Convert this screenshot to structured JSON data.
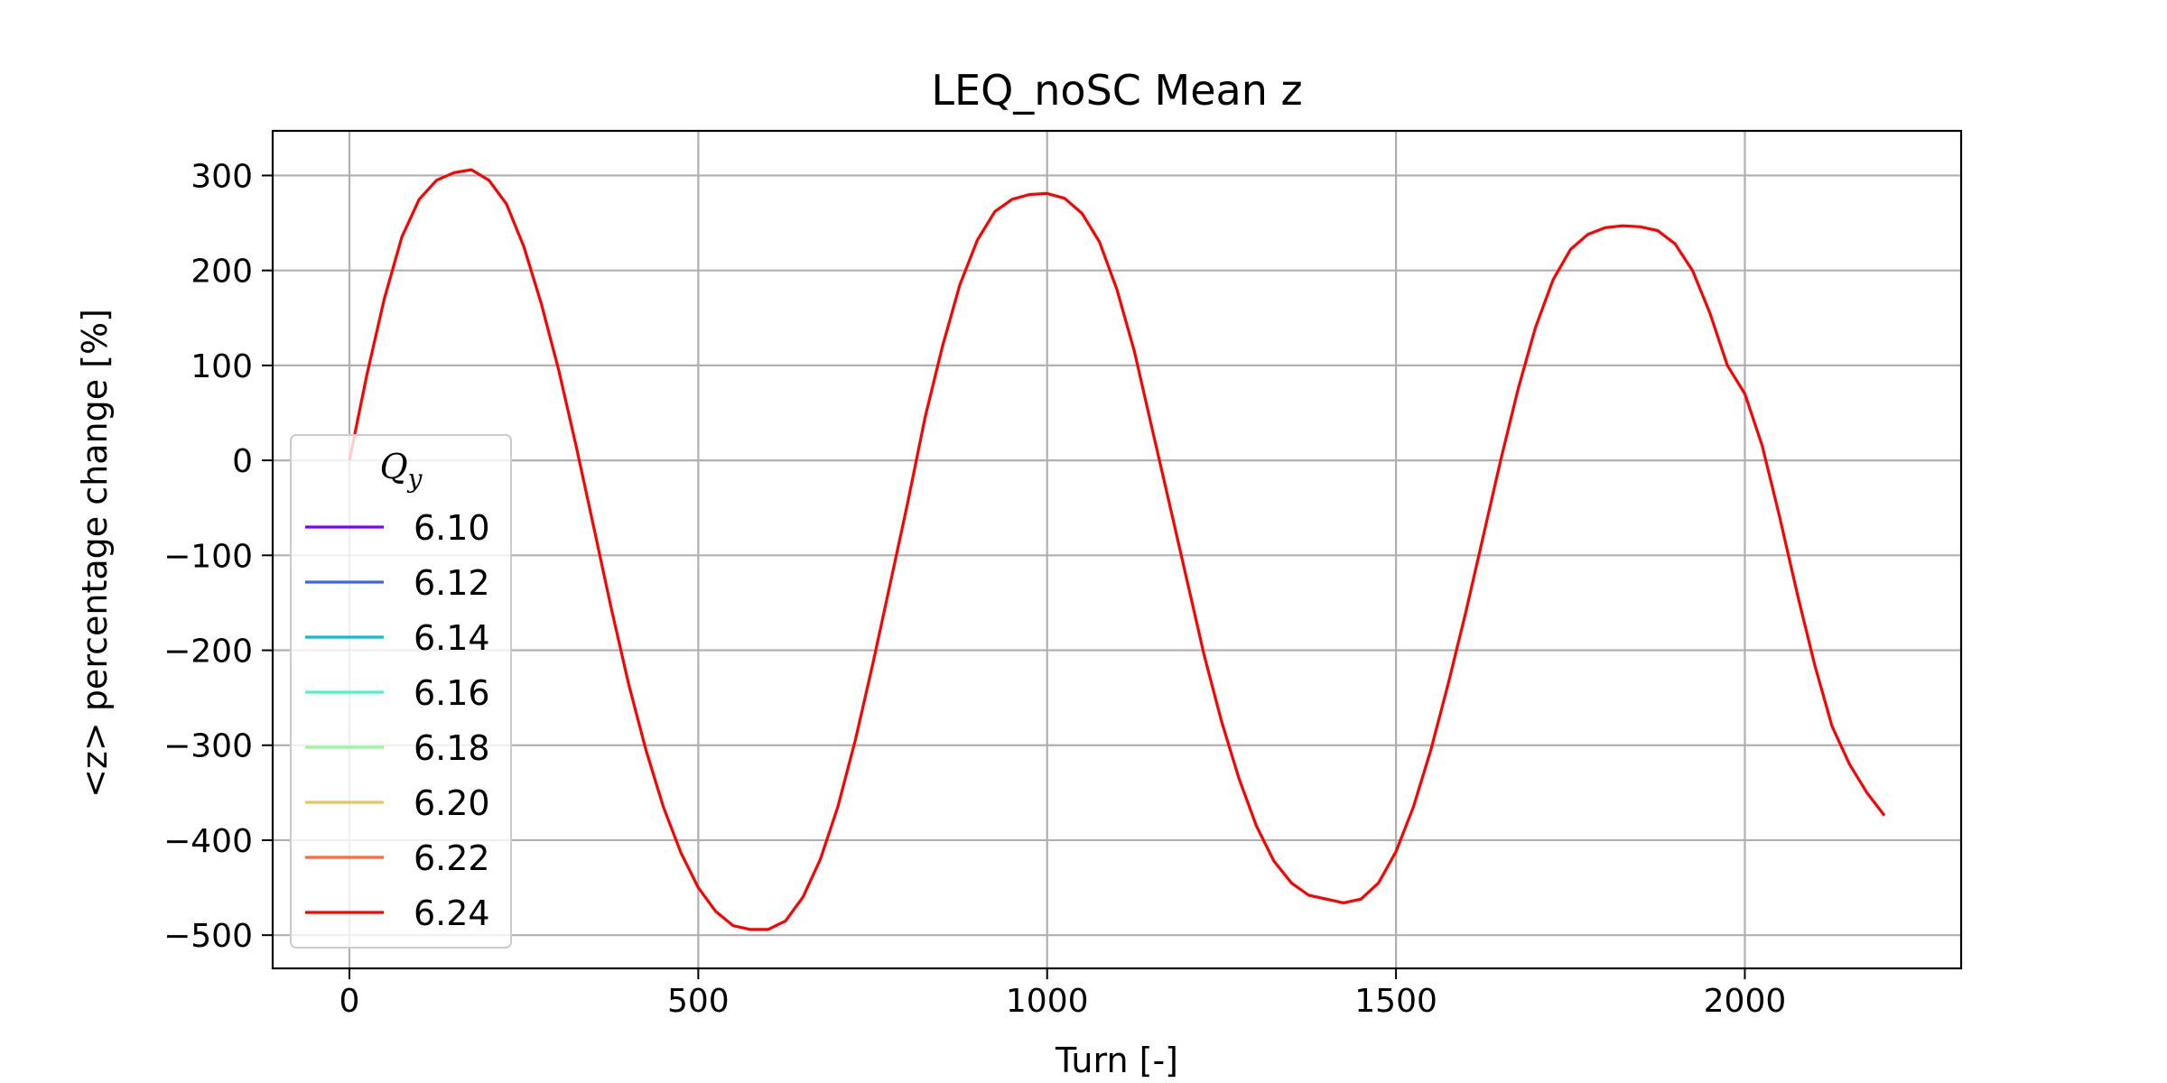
{
  "chart_data": {
    "type": "line",
    "title": "LEQ_noSC Mean z",
    "xlabel": "Turn [-]",
    "ylabel": "<z> percentage change [%]",
    "xlim": [
      -110,
      2310
    ],
    "ylim": [
      -535,
      347
    ],
    "xticks": [
      0,
      500,
      1000,
      1500,
      2000
    ],
    "xtick_labels": [
      "0",
      "500",
      "1000",
      "1500",
      "2000"
    ],
    "yticks": [
      300,
      200,
      100,
      0,
      -100,
      -200,
      -300,
      -400,
      -500
    ],
    "ytick_labels": [
      "300",
      "200",
      "100",
      "0",
      "−100",
      "−200",
      "−300",
      "−400",
      "−500"
    ],
    "grid": true,
    "legend": {
      "title_base": "Q",
      "title_sub": "y",
      "placement": "lower-left"
    },
    "series": [
      {
        "name": "6.10",
        "color": "#8000ff",
        "points": []
      },
      {
        "name": "6.12",
        "color": "#3d64f5",
        "points": []
      },
      {
        "name": "6.14",
        "color": "#0cbcdc",
        "points": []
      },
      {
        "name": "6.16",
        "color": "#4df3cd",
        "points": []
      },
      {
        "name": "6.18",
        "color": "#9cf59b",
        "points": []
      },
      {
        "name": "6.20",
        "color": "#e6c561",
        "points": []
      },
      {
        "name": "6.22",
        "color": "#ff6838",
        "points": []
      },
      {
        "name": "6.24",
        "color": "#ff0000",
        "points": [
          [
            0,
            0
          ],
          [
            25,
            90
          ],
          [
            50,
            170
          ],
          [
            75,
            235
          ],
          [
            100,
            275
          ],
          [
            125,
            295
          ],
          [
            150,
            303
          ],
          [
            175,
            306
          ],
          [
            200,
            295
          ],
          [
            225,
            270
          ],
          [
            250,
            225
          ],
          [
            275,
            165
          ],
          [
            300,
            95
          ],
          [
            325,
            15
          ],
          [
            350,
            -70
          ],
          [
            375,
            -155
          ],
          [
            400,
            -235
          ],
          [
            425,
            -305
          ],
          [
            450,
            -365
          ],
          [
            475,
            -413
          ],
          [
            500,
            -450
          ],
          [
            525,
            -475
          ],
          [
            550,
            -490
          ],
          [
            575,
            -494
          ],
          [
            600,
            -494
          ],
          [
            625,
            -485
          ],
          [
            650,
            -460
          ],
          [
            675,
            -420
          ],
          [
            700,
            -365
          ],
          [
            725,
            -295
          ],
          [
            750,
            -215
          ],
          [
            775,
            -130
          ],
          [
            800,
            -45
          ],
          [
            825,
            45
          ],
          [
            850,
            120
          ],
          [
            875,
            185
          ],
          [
            900,
            232
          ],
          [
            925,
            262
          ],
          [
            950,
            275
          ],
          [
            975,
            280
          ],
          [
            1000,
            281
          ],
          [
            1025,
            276
          ],
          [
            1050,
            260
          ],
          [
            1075,
            230
          ],
          [
            1100,
            180
          ],
          [
            1125,
            115
          ],
          [
            1150,
            35
          ],
          [
            1175,
            -45
          ],
          [
            1200,
            -125
          ],
          [
            1225,
            -205
          ],
          [
            1250,
            -275
          ],
          [
            1275,
            -335
          ],
          [
            1300,
            -385
          ],
          [
            1325,
            -422
          ],
          [
            1350,
            -445
          ],
          [
            1375,
            -458
          ],
          [
            1400,
            -462
          ],
          [
            1425,
            -466
          ],
          [
            1450,
            -462
          ],
          [
            1475,
            -445
          ],
          [
            1500,
            -412
          ],
          [
            1525,
            -365
          ],
          [
            1550,
            -305
          ],
          [
            1575,
            -235
          ],
          [
            1600,
            -160
          ],
          [
            1625,
            -80
          ],
          [
            1650,
            0
          ],
          [
            1675,
            75
          ],
          [
            1700,
            140
          ],
          [
            1725,
            190
          ],
          [
            1750,
            222
          ],
          [
            1775,
            238
          ],
          [
            1800,
            245
          ],
          [
            1825,
            247
          ],
          [
            1850,
            246
          ],
          [
            1875,
            242
          ],
          [
            1900,
            228
          ],
          [
            1925,
            200
          ],
          [
            1950,
            155
          ],
          [
            1975,
            100
          ],
          [
            2000,
            70
          ],
          [
            2025,
            15
          ],
          [
            2050,
            -60
          ],
          [
            2075,
            -140
          ],
          [
            2100,
            -215
          ],
          [
            2125,
            -280
          ],
          [
            2150,
            -320
          ],
          [
            2175,
            -350
          ],
          [
            2200,
            -374
          ]
        ]
      }
    ]
  }
}
